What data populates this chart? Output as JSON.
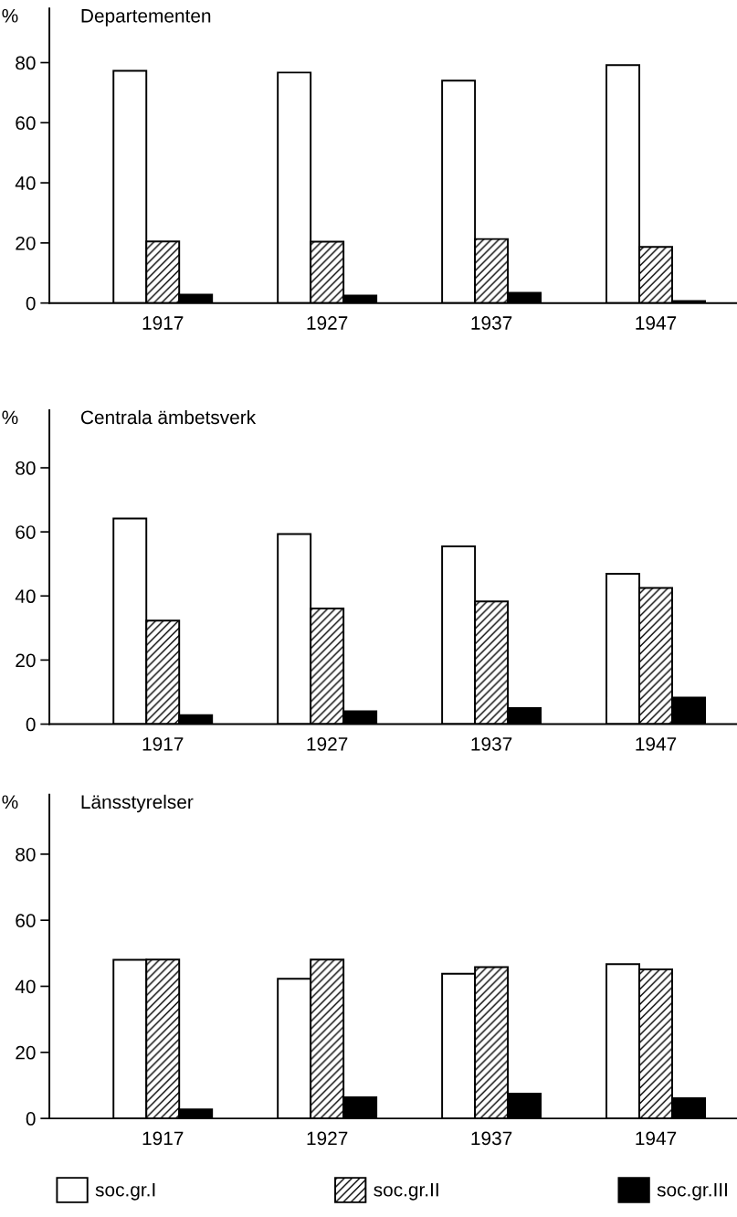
{
  "chart_data": [
    {
      "type": "bar",
      "title": "Departementen",
      "ylabel": "%",
      "categories": [
        "1917",
        "1927",
        "1937",
        "1947"
      ],
      "ylim": [
        0,
        98
      ],
      "yticks": [
        0,
        20,
        40,
        60,
        80
      ],
      "grid": false,
      "series": [
        {
          "color": "#ffffff",
          "values": [
            77.3,
            76.7,
            74,
            79.2
          ]
        },
        {
          "color": "#000000",
          "values": [
            20.5,
            20.4,
            21.3,
            18.7
          ]
        },
        {
          "color": "#000000",
          "values": [
            2.8,
            2.5,
            3.4,
            0.7
          ]
        }
      ]
    },
    {
      "type": "bar",
      "title": "Centrala ämbetsverk",
      "ylabel": "%",
      "categories": [
        "1917",
        "1927",
        "1937",
        "1947"
      ],
      "ylim": [
        0,
        98
      ],
      "yticks": [
        0,
        20,
        40,
        60,
        80
      ],
      "grid": false,
      "series": [
        {
          "color": "#ffffff",
          "values": [
            64.2,
            59.3,
            55.5,
            46.9
          ]
        },
        {
          "color": "#000000",
          "values": [
            32.3,
            36.1,
            38.3,
            42.5
          ]
        },
        {
          "color": "#000000",
          "values": [
            2.8,
            4.0,
            5.0,
            8.3
          ]
        }
      ]
    },
    {
      "type": "bar",
      "title": "Länsstyrelser",
      "ylabel": "%",
      "categories": [
        "1917",
        "1927",
        "1937",
        "1947"
      ],
      "ylim": [
        0,
        98
      ],
      "yticks": [
        0,
        20,
        40,
        60,
        80
      ],
      "grid": false,
      "legend": "bottom",
      "series": [
        {
          "name": "soc.gr.I",
          "color": "#ffffff",
          "values": [
            48,
            42.3,
            43.8,
            46.7
          ]
        },
        {
          "name": "soc.gr.II",
          "color": "#000000",
          "values": [
            48.1,
            48.1,
            45.8,
            45.1
          ]
        },
        {
          "name": "soc.gr.III",
          "color": "#000000",
          "values": [
            2.7,
            6.4,
            7.5,
            6.1
          ]
        }
      ]
    }
  ]
}
